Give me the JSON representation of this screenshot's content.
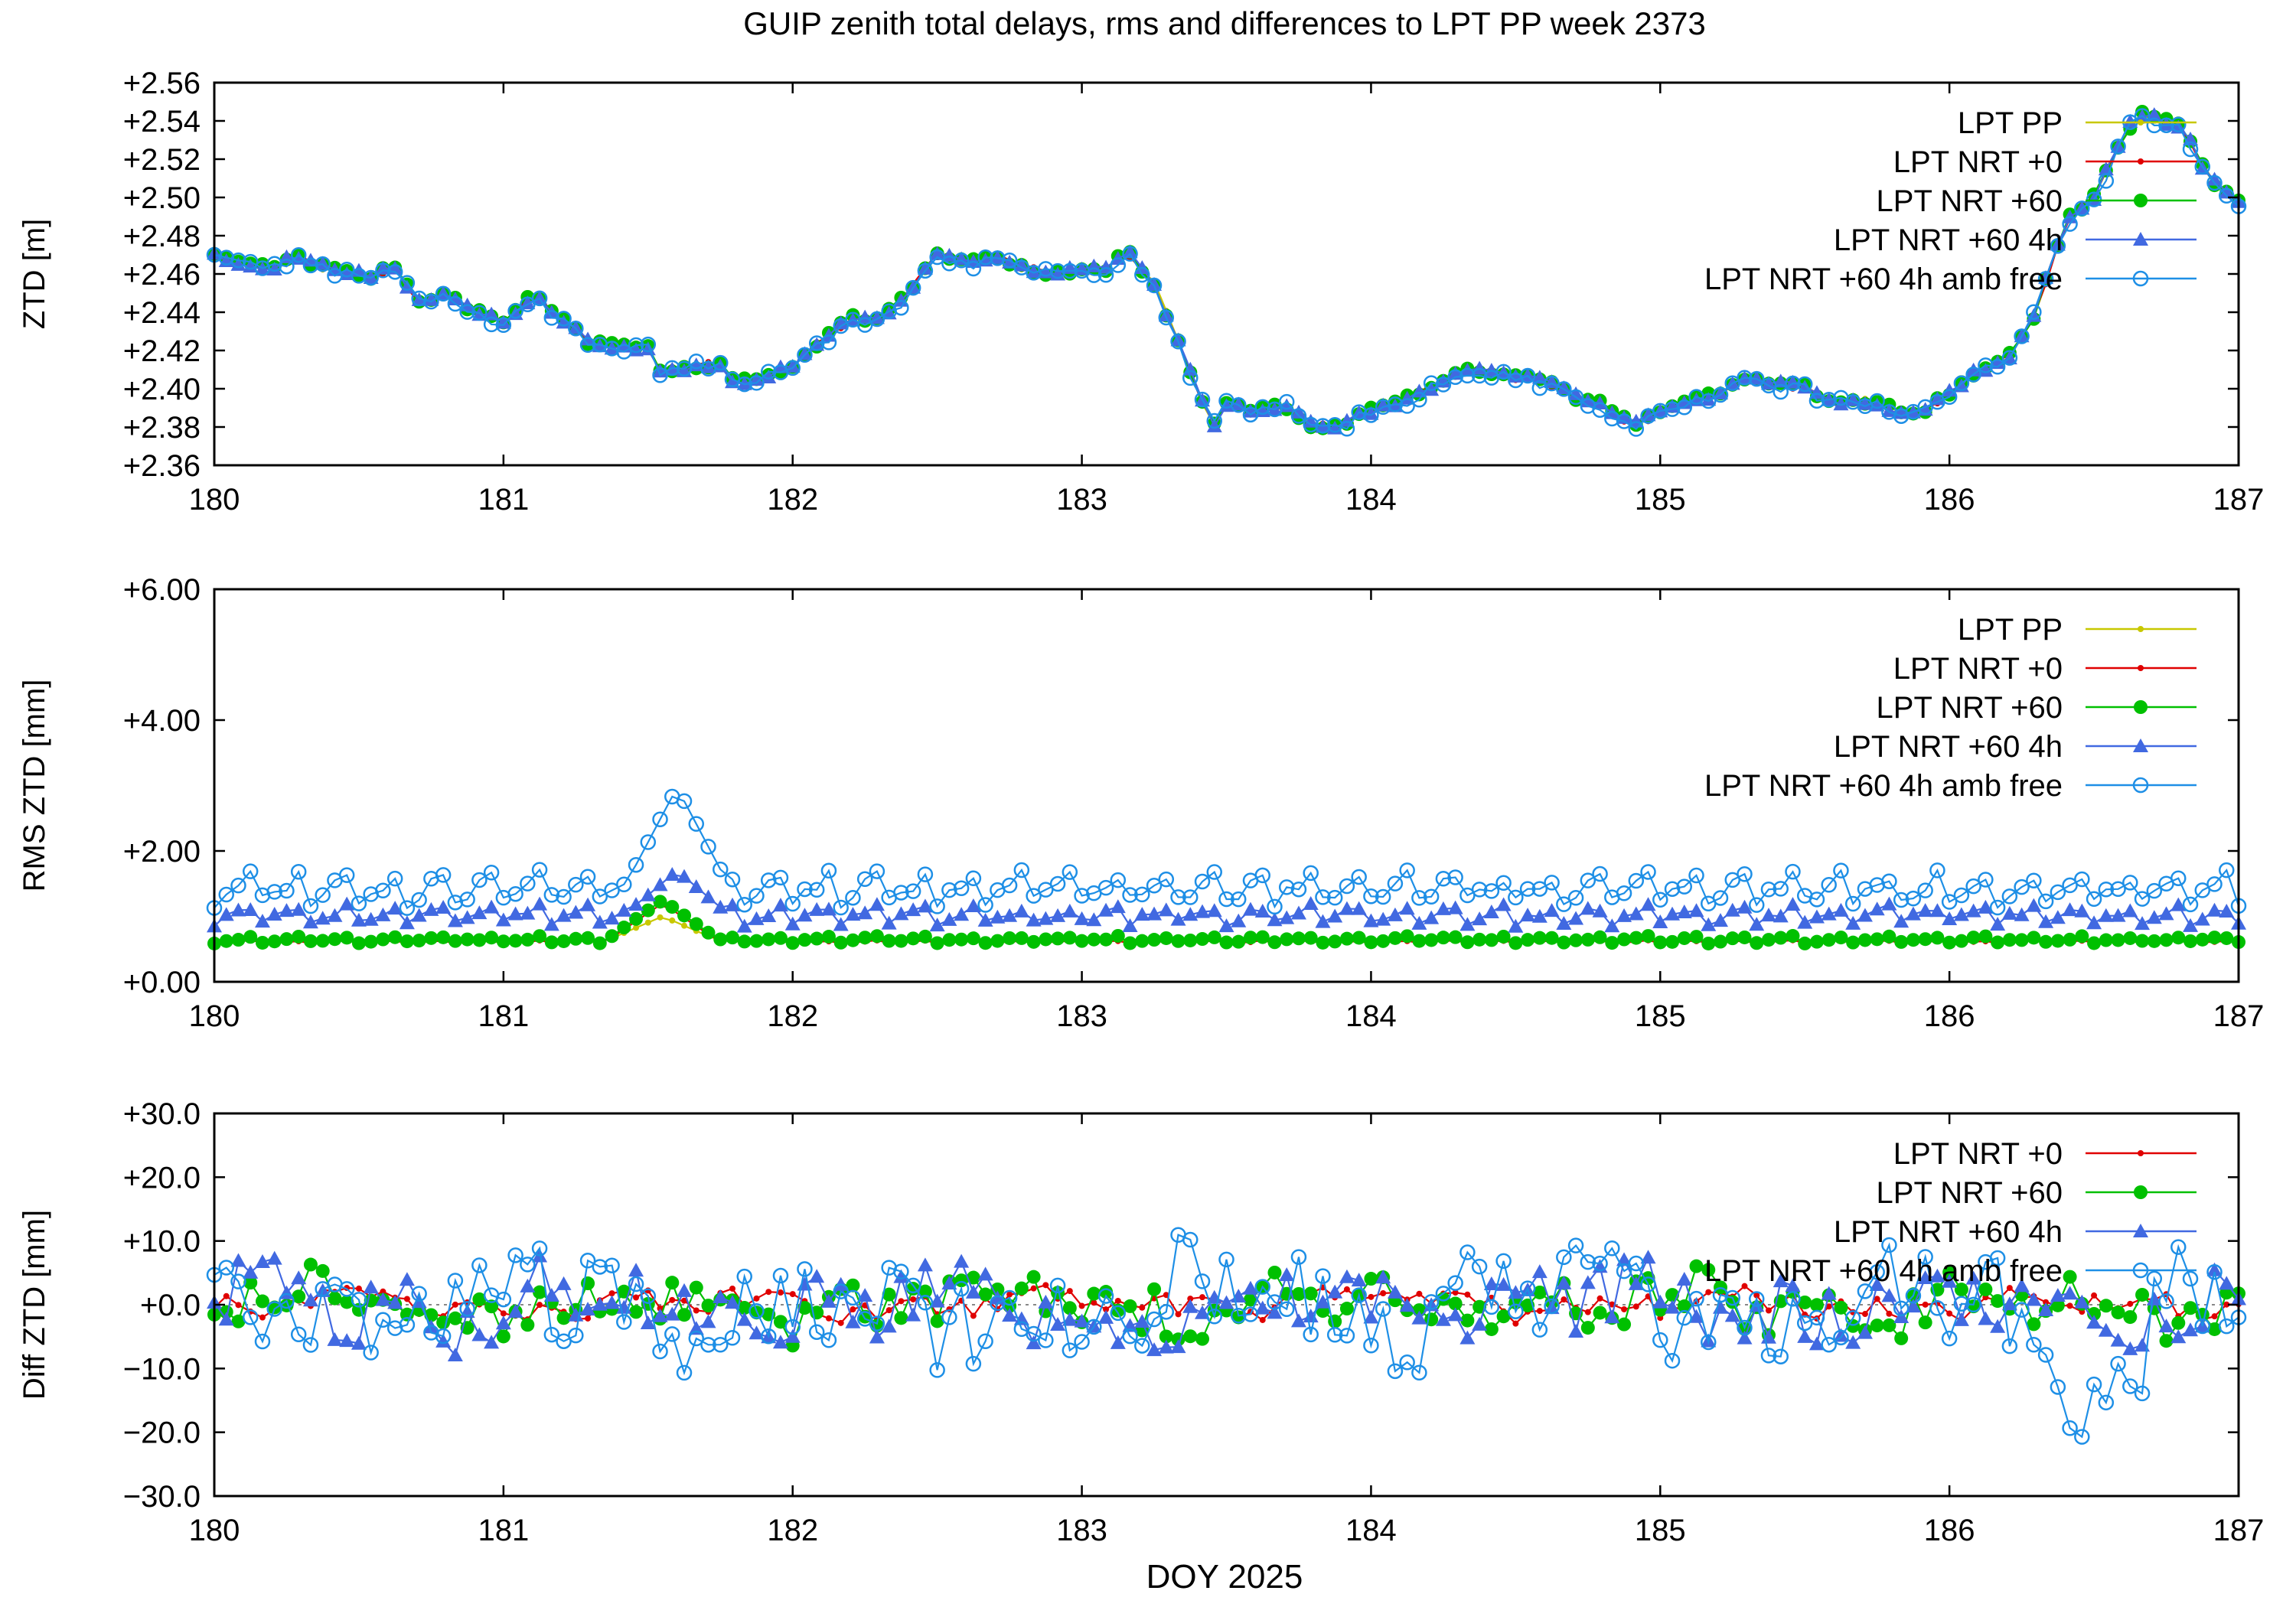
{
  "figure": {
    "title": "GUIP zenith total delays, rms and differences to LPT PP week 2373",
    "xlabel": "DOY 2025"
  },
  "series_styles": {
    "LPT PP": {
      "color": "#c8c800",
      "marker": "dot"
    },
    "LPT NRT +0": {
      "color": "#e00000",
      "marker": "dot"
    },
    "LPT NRT +60": {
      "color": "#00c000",
      "marker": "circle-filled"
    },
    "LPT NRT +60 4h": {
      "color": "#4169e1",
      "marker": "triangle"
    },
    "LPT NRT +60 4h amb free": {
      "color": "#1e8fe6",
      "marker": "circle-open"
    }
  },
  "chart_data": [
    {
      "type": "line",
      "ylabel": "ZTD [m]",
      "xlim": [
        180,
        187
      ],
      "ylim": [
        2.36,
        2.56
      ],
      "xticks": [
        "180",
        "181",
        "182",
        "183",
        "184",
        "185",
        "186",
        "187"
      ],
      "yticks": [
        "+2.36",
        "+2.38",
        "+2.40",
        "+2.42",
        "+2.44",
        "+2.46",
        "+2.48",
        "+2.50",
        "+2.52",
        "+2.54",
        "+2.56"
      ],
      "grid": false,
      "legend_position": "top-right",
      "legend": [
        "LPT PP",
        "LPT NRT +0",
        "LPT NRT +60",
        "LPT NRT +60 4h",
        "LPT NRT +60 4h amb free"
      ],
      "base_curve": {
        "x": [
          180.0,
          180.1,
          180.2,
          180.28,
          180.35,
          180.45,
          180.55,
          180.62,
          180.7,
          180.8,
          180.9,
          181.0,
          181.1,
          181.2,
          181.3,
          181.4,
          181.5,
          181.55,
          181.65,
          181.75,
          181.8,
          181.9,
          182.0,
          182.1,
          182.2,
          182.3,
          182.4,
          182.5,
          182.6,
          182.7,
          182.8,
          182.9,
          183.0,
          183.1,
          183.15,
          183.25,
          183.35,
          183.45,
          183.5,
          183.6,
          183.7,
          183.8,
          183.9,
          184.0,
          184.1,
          184.2,
          184.3,
          184.4,
          184.5,
          184.6,
          184.7,
          184.8,
          184.9,
          185.0,
          185.1,
          185.2,
          185.3,
          185.4,
          185.5,
          185.6,
          185.7,
          185.8,
          185.9,
          186.0,
          186.1,
          186.2,
          186.3,
          186.4,
          186.5,
          186.6,
          186.65,
          186.7,
          186.8,
          186.9,
          187.0
        ],
        "y": [
          2.47,
          2.466,
          2.463,
          2.471,
          2.464,
          2.462,
          2.458,
          2.465,
          2.446,
          2.449,
          2.441,
          2.435,
          2.449,
          2.436,
          2.424,
          2.423,
          2.421,
          2.409,
          2.412,
          2.413,
          2.403,
          2.407,
          2.412,
          2.425,
          2.437,
          2.436,
          2.45,
          2.472,
          2.466,
          2.47,
          2.463,
          2.46,
          2.462,
          2.463,
          2.473,
          2.455,
          2.418,
          2.38,
          2.392,
          2.388,
          2.392,
          2.38,
          2.381,
          2.389,
          2.393,
          2.4,
          2.41,
          2.409,
          2.406,
          2.404,
          2.396,
          2.392,
          2.381,
          2.387,
          2.394,
          2.397,
          2.405,
          2.402,
          2.401,
          2.393,
          2.394,
          2.39,
          2.387,
          2.398,
          2.41,
          2.415,
          2.44,
          2.488,
          2.5,
          2.53,
          2.545,
          2.542,
          2.538,
          2.51,
          2.498
        ]
      },
      "series": [
        {
          "name": "LPT PP",
          "offset": 0.0,
          "noise": 0.0012
        },
        {
          "name": "LPT NRT +0",
          "offset": 0.0,
          "noise": 0.0015
        },
        {
          "name": "LPT NRT +60",
          "offset": 0.0,
          "noise": 0.0018
        },
        {
          "name": "LPT NRT +60 4h",
          "offset": 0.0,
          "noise": 0.0022
        },
        {
          "name": "LPT NRT +60 4h amb free",
          "offset": -0.001,
          "noise": 0.0032
        }
      ]
    },
    {
      "type": "line",
      "ylabel": "RMS ZTD [mm]",
      "xlim": [
        180,
        187
      ],
      "ylim": [
        0,
        6
      ],
      "xticks": [
        "180",
        "181",
        "182",
        "183",
        "184",
        "185",
        "186",
        "187"
      ],
      "yticks": [
        "+0.00",
        "+2.00",
        "+4.00",
        "+6.00"
      ],
      "grid": false,
      "legend_position": "top-right",
      "legend": [
        "LPT PP",
        "LPT NRT +0",
        "LPT NRT +60",
        "LPT NRT +60 4h",
        "LPT NRT +60 4h amb free"
      ],
      "series": [
        {
          "name": "LPT PP",
          "level": 0.62,
          "spread": 0.05,
          "spike_x": 181.55,
          "spike_y": 1.0
        },
        {
          "name": "LPT NRT +0",
          "level": 0.6,
          "spread": 0.05,
          "spike_x": 181.55,
          "spike_y": 1.2
        },
        {
          "name": "LPT NRT +60",
          "level": 0.62,
          "spread": 0.12,
          "spike_x": 181.55,
          "spike_y": 1.25
        },
        {
          "name": "LPT NRT +60 4h",
          "level": 0.95,
          "spread": 0.35,
          "spike_x": 181.6,
          "spike_y": 1.7
        },
        {
          "name": "LPT NRT +60 4h amb free",
          "level": 1.3,
          "spread": 0.6,
          "spike_x": 181.6,
          "spike_y": 2.97
        }
      ]
    },
    {
      "type": "line",
      "ylabel": "Diff ZTD [mm]",
      "xlim": [
        180,
        187
      ],
      "ylim": [
        -30,
        30
      ],
      "xticks": [
        "180",
        "181",
        "182",
        "183",
        "184",
        "185",
        "186",
        "187"
      ],
      "yticks": [
        "−30.0",
        "−20.0",
        "−10.0",
        "+0.0",
        "+10.0",
        "+20.0",
        "+30.0"
      ],
      "grid": false,
      "zero_line": true,
      "legend_position": "top-right",
      "legend": [
        "LPT NRT +0",
        "LPT NRT +60",
        "LPT NRT +60 4h",
        "LPT NRT +60 4h amb free"
      ],
      "series": [
        {
          "name": "LPT NRT +0",
          "amplitude": 2.2
        },
        {
          "name": "LPT NRT +60",
          "amplitude": 4.5
        },
        {
          "name": "LPT NRT +60 4h",
          "amplitude": 6.0
        },
        {
          "name": "LPT NRT +60 4h amb free",
          "amplitude": 8.5
        }
      ]
    }
  ]
}
